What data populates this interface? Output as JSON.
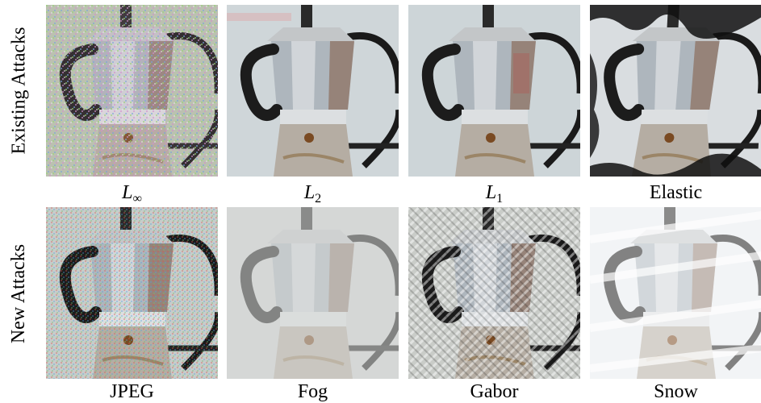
{
  "rows": [
    {
      "label": "Existing Attacks"
    },
    {
      "label": "New Attacks"
    }
  ],
  "captions": {
    "linf_base": "L",
    "linf_sub": "∞",
    "l2_base": "L",
    "l2_sub": "2",
    "l1_base": "L",
    "l1_sub": "1",
    "elastic": "Elastic",
    "jpeg": "JPEG",
    "fog": "Fog",
    "gabor": "Gabor",
    "snow": "Snow"
  },
  "images": [
    {
      "subject": "moka pot (espresso maker) on stove",
      "attack": "L-infinity",
      "colors": {
        "bg": "#b9c7b0",
        "metal": "#b8aa98",
        "noise": "#9ad06a"
      }
    },
    {
      "subject": "moka pot (espresso maker) on stove",
      "attack": "L2",
      "colors": {
        "bg": "#cfd6d9",
        "metal": "#a9b3bd",
        "handle": "#1c1c1c"
      }
    },
    {
      "subject": "moka pot (espresso maker) on stove",
      "attack": "L1",
      "colors": {
        "bg": "#cdd5d8",
        "metal": "#a5adb5",
        "handle": "#1c1c1c"
      }
    },
    {
      "subject": "moka pot (espresso maker) on stove",
      "attack": "Elastic",
      "colors": {
        "bg": "#d9dde0",
        "metal": "#b0b3b5",
        "handle": "#0f0f0f"
      }
    },
    {
      "subject": "moka pot (espresso maker) on stove",
      "attack": "JPEG",
      "colors": {
        "bg": "#c7ccc9",
        "metal": "#9fa9b4",
        "handle": "#202020"
      }
    },
    {
      "subject": "moka pot (espresso maker) on stove",
      "attack": "Fog",
      "colors": {
        "bg": "#d0d3d2",
        "metal": "#b7bdbf",
        "handle": "#4a4a4a"
      }
    },
    {
      "subject": "moka pot (espresso maker) on stove",
      "attack": "Gabor",
      "colors": {
        "bg": "#c9ccc8",
        "metal": "#a4a6a6",
        "handle": "#1a1a1a"
      }
    },
    {
      "subject": "moka pot (espresso maker) on stove",
      "attack": "Snow",
      "colors": {
        "bg": "#e8ecee",
        "metal": "#c9cfd3",
        "handle": "#5c6469"
      }
    }
  ]
}
